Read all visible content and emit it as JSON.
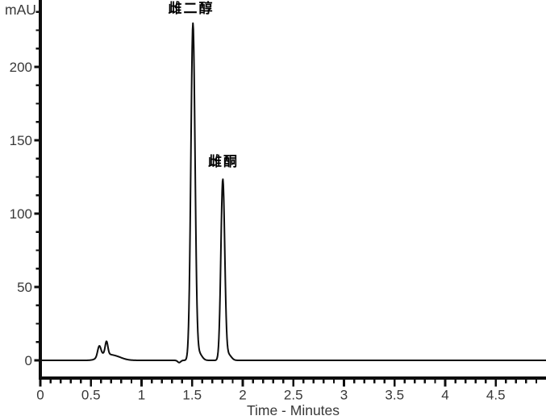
{
  "figure": {
    "background_color": "#ffffff",
    "line_color": "#0d0d0d",
    "text_color": "#383838"
  },
  "chart_data": {
    "type": "line",
    "subtype": "chromatogram",
    "title": "",
    "xlabel": "Time - Minutes",
    "ylabel": "mAU",
    "xlim": [
      0,
      5.0
    ],
    "ylim": [
      -12,
      245
    ],
    "x_major_ticks": [
      0,
      0.5,
      1,
      1.5,
      2,
      2.5,
      3,
      3.5,
      4,
      4.5
    ],
    "x_tick_labels": [
      "0",
      "0.5",
      "1",
      "1.5",
      "2",
      "2.5",
      "3",
      "3.5",
      "4",
      "4.5"
    ],
    "x_minor_tick_step": 0.1,
    "x_minor_tick_max": 4.9,
    "y_major_ticks": [
      0,
      50,
      100,
      150,
      200
    ],
    "y_tick_labels": [
      "0",
      "50",
      "100",
      "150",
      "200"
    ],
    "y_minor_tick_step": 12.5,
    "y_minor_tick_max": 240,
    "grid": false,
    "baseline_mAU": 0,
    "line_color": "#0d0d0d",
    "annotations": [
      {
        "text": "雌二醇",
        "time_min": 1.51,
        "peak_height_mAU": 229
      },
      {
        "text": "雌酮",
        "time_min": 1.8,
        "peak_height_mAU": 123
      }
    ],
    "peaks": [
      {
        "label": "雌二醇",
        "apex_time_min": 1.508,
        "height_mAU": 229,
        "sigma_min": 0.0205,
        "tail": {
          "time_min": 1.565,
          "height_mAU": 5,
          "sigma_min": 0.03
        }
      },
      {
        "label": "雌酮",
        "apex_time_min": 1.803,
        "height_mAU": 123,
        "sigma_min": 0.019,
        "tail": {
          "time_min": 1.858,
          "height_mAU": 4,
          "sigma_min": 0.028
        }
      }
    ],
    "minor_features": [
      {
        "apex_time_min": 0.582,
        "height_mAU": 7.0,
        "sigma_min": 0.016
      },
      {
        "apex_time_min": 0.654,
        "height_mAU": 8.5,
        "sigma_min": 0.013
      },
      {
        "apex_time_min": 0.62,
        "height_mAU": 3.0,
        "sigma_min": 0.05
      },
      {
        "apex_time_min": 0.72,
        "height_mAU": 3.2,
        "sigma_min": 0.075
      },
      {
        "apex_time_min": 1.372,
        "height_mAU": -1.5,
        "sigma_min": 0.015
      }
    ]
  },
  "labels": {
    "y_axis_title": "mAU",
    "x_axis_title": "Time - Minutes"
  }
}
